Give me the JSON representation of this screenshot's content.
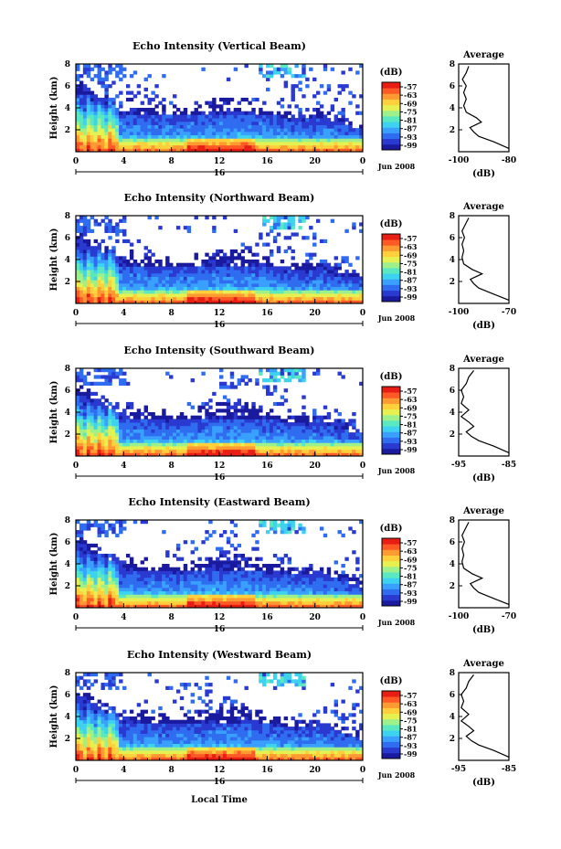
{
  "figure": {
    "x_axis_label": "Local Time",
    "date_label": "Jun 2008",
    "x_ticks": [
      "0",
      "4",
      "8",
      "12",
      "16",
      "20",
      "0"
    ],
    "day_label": "16",
    "y_axis_label": "Height (km)",
    "y_ticks": [
      "2",
      "4",
      "6",
      "8"
    ],
    "colorbar_unit": "(dB)",
    "colorbar_ticks": [
      "-57",
      "-63",
      "-69",
      "-75",
      "-81",
      "-87",
      "-93",
      "-99"
    ],
    "colorbar_colors": [
      "#1a1a9e",
      "#2a3ad0",
      "#2f6cf0",
      "#3aa0ff",
      "#3cd2f0",
      "#5ae8c0",
      "#9ef08a",
      "#e6f050",
      "#ffd03c",
      "#ff9a32",
      "#ff5a26",
      "#e81e14"
    ],
    "avg_title": "Average",
    "avg_xlabel": "(dB)"
  },
  "chart_data": [
    {
      "type": "heatmap",
      "title": "Echo Intensity (Vertical Beam)",
      "xlabel": "Local Time",
      "ylabel": "Height (km)",
      "xlim": [
        0,
        24
      ],
      "ylim": [
        0,
        8
      ],
      "zlim": [
        -99,
        -57
      ],
      "z_unit": "dB",
      "average": {
        "title": "Average",
        "xlabel": "(dB)",
        "xticks": [
          "-100",
          "-80"
        ],
        "xlim": [
          -100,
          -80
        ],
        "ylim": [
          0,
          8
        ],
        "profile": [
          [
            -80,
            0.3
          ],
          [
            -86,
            0.9
          ],
          [
            -92,
            1.4
          ],
          [
            -94,
            1.8
          ],
          [
            -95.5,
            2.2
          ],
          [
            -91,
            2.7
          ],
          [
            -93,
            3.1
          ],
          [
            -97,
            3.6
          ],
          [
            -98,
            4.2
          ],
          [
            -97,
            4.8
          ],
          [
            -98,
            5.4
          ],
          [
            -97,
            6.0
          ],
          [
            -98.5,
            6.6
          ],
          [
            -97,
            7.2
          ],
          [
            -96,
            7.8
          ]
        ]
      }
    },
    {
      "type": "heatmap",
      "title": "Echo Intensity (Northward Beam)",
      "xlabel": "Local Time",
      "ylabel": "Height (km)",
      "xlim": [
        0,
        24
      ],
      "ylim": [
        0,
        8
      ],
      "zlim": [
        -99,
        -57
      ],
      "z_unit": "dB",
      "average": {
        "title": "Average",
        "xlabel": "(dB)",
        "xticks": [
          "-100",
          "-70"
        ],
        "xlim": [
          -100,
          -70
        ],
        "ylim": [
          0,
          8
        ],
        "profile": [
          [
            -70,
            0.3
          ],
          [
            -80,
            0.9
          ],
          [
            -88,
            1.4
          ],
          [
            -91,
            1.8
          ],
          [
            -93,
            2.2
          ],
          [
            -86,
            2.7
          ],
          [
            -92,
            3.1
          ],
          [
            -97,
            3.6
          ],
          [
            -98,
            4.2
          ],
          [
            -97,
            4.8
          ],
          [
            -98,
            5.4
          ],
          [
            -96.5,
            6.0
          ],
          [
            -98,
            6.6
          ],
          [
            -96,
            7.2
          ],
          [
            -94,
            7.8
          ]
        ]
      }
    },
    {
      "type": "heatmap",
      "title": "Echo Intensity (Southward Beam)",
      "xlabel": "Local Time",
      "ylabel": "Height (km)",
      "xlim": [
        0,
        24
      ],
      "ylim": [
        0,
        8
      ],
      "zlim": [
        -99,
        -57
      ],
      "z_unit": "dB",
      "average": {
        "title": "Average",
        "xlabel": "(dB)",
        "xticks": [
          "-95",
          "-85"
        ],
        "xlim": [
          -95,
          -85
        ],
        "ylim": [
          0,
          8
        ],
        "profile": [
          [
            -85,
            0.3
          ],
          [
            -88,
            0.9
          ],
          [
            -91,
            1.4
          ],
          [
            -92.5,
            1.8
          ],
          [
            -93.5,
            2.2
          ],
          [
            -92,
            2.7
          ],
          [
            -93,
            3.1
          ],
          [
            -94.5,
            3.6
          ],
          [
            -93,
            4.2
          ],
          [
            -94.5,
            4.8
          ],
          [
            -94,
            5.4
          ],
          [
            -94.5,
            6.0
          ],
          [
            -93.5,
            6.6
          ],
          [
            -93,
            7.2
          ],
          [
            -92,
            7.8
          ]
        ]
      }
    },
    {
      "type": "heatmap",
      "title": "Echo Intensity (Eastward Beam)",
      "xlabel": "Local Time",
      "ylabel": "Height (km)",
      "xlim": [
        0,
        24
      ],
      "ylim": [
        0,
        8
      ],
      "zlim": [
        -99,
        -57
      ],
      "z_unit": "dB",
      "average": {
        "title": "Average",
        "xlabel": "(dB)",
        "xticks": [
          "-100",
          "-70"
        ],
        "xlim": [
          -100,
          -70
        ],
        "ylim": [
          0,
          8
        ],
        "profile": [
          [
            -70,
            0.3
          ],
          [
            -80,
            0.9
          ],
          [
            -88,
            1.4
          ],
          [
            -91,
            1.8
          ],
          [
            -93,
            2.2
          ],
          [
            -86,
            2.7
          ],
          [
            -92,
            3.1
          ],
          [
            -97,
            3.6
          ],
          [
            -98,
            4.2
          ],
          [
            -97,
            4.8
          ],
          [
            -98,
            5.4
          ],
          [
            -96.5,
            6.0
          ],
          [
            -98,
            6.6
          ],
          [
            -96,
            7.2
          ],
          [
            -94,
            7.8
          ]
        ]
      }
    },
    {
      "type": "heatmap",
      "title": "Echo Intensity (Westward Beam)",
      "xlabel": "Local Time",
      "ylabel": "Height (km)",
      "xlim": [
        0,
        24
      ],
      "ylim": [
        0,
        8
      ],
      "zlim": [
        -99,
        -57
      ],
      "z_unit": "dB",
      "average": {
        "title": "Average",
        "xlabel": "(dB)",
        "xticks": [
          "-95",
          "-85"
        ],
        "xlim": [
          -95,
          -85
        ],
        "ylim": [
          0,
          8
        ],
        "profile": [
          [
            -85,
            0.3
          ],
          [
            -88,
            0.9
          ],
          [
            -91,
            1.4
          ],
          [
            -92.5,
            1.8
          ],
          [
            -93.5,
            2.2
          ],
          [
            -92,
            2.7
          ],
          [
            -93,
            3.1
          ],
          [
            -94.5,
            3.6
          ],
          [
            -93,
            4.2
          ],
          [
            -94.5,
            4.8
          ],
          [
            -94,
            5.4
          ],
          [
            -94.5,
            6.0
          ],
          [
            -93.5,
            6.6
          ],
          [
            -93,
            7.2
          ],
          [
            -92,
            7.8
          ]
        ]
      }
    }
  ]
}
